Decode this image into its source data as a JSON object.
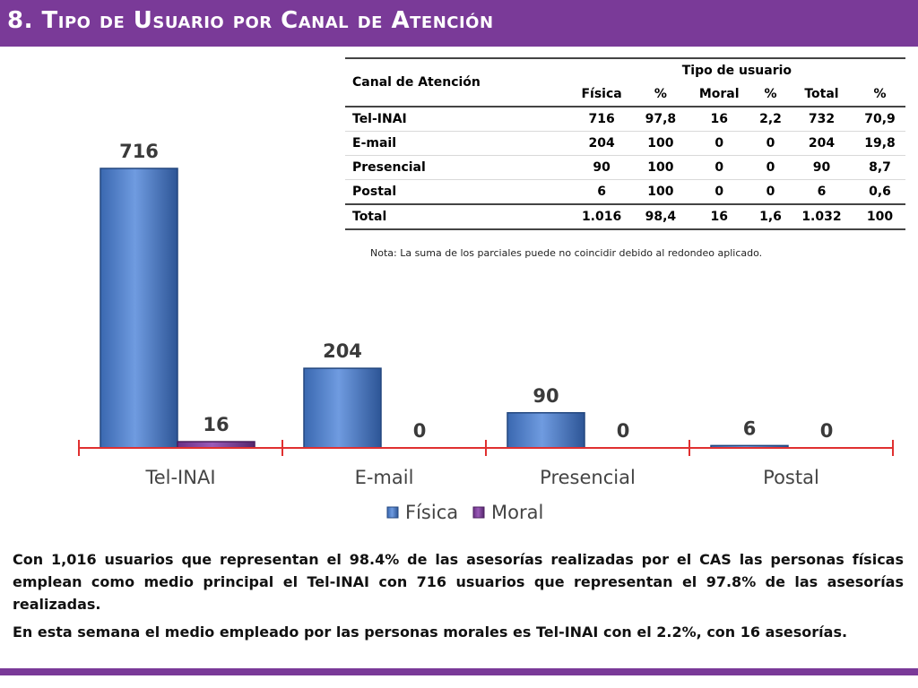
{
  "title": "8. Tipo de Usuario por Canal de Atención",
  "colors": {
    "header_bar": "#7a3a98",
    "fisica": "#4a7fcd",
    "moral": "#7f3f9d",
    "axis": "#e03030"
  },
  "chart_data": {
    "type": "bar",
    "categories": [
      "Tel-INAI",
      "E-mail",
      "Presencial",
      "Postal"
    ],
    "series": [
      {
        "name": "Física",
        "values": [
          716,
          204,
          90,
          6
        ]
      },
      {
        "name": "Moral",
        "values": [
          16,
          0,
          0,
          0
        ]
      }
    ],
    "title": "",
    "xlabel": "",
    "ylabel": "",
    "ylim": [
      0,
      716
    ],
    "legend": "bottom",
    "grid": false
  },
  "table": {
    "corner": "Canal de Atención",
    "group_header": "Tipo de usuario",
    "columns": [
      "Física",
      "%",
      "Moral",
      "%",
      "Total",
      "%"
    ],
    "rows": [
      {
        "label": "Tel-INAI",
        "cells": [
          "716",
          "97,8",
          "16",
          "2,2",
          "732",
          "70,9"
        ]
      },
      {
        "label": "E-mail",
        "cells": [
          "204",
          "100",
          "0",
          "0",
          "204",
          "19,8"
        ]
      },
      {
        "label": "Presencial",
        "cells": [
          "90",
          "100",
          "0",
          "0",
          "90",
          "8,7"
        ]
      },
      {
        "label": "Postal",
        "cells": [
          "6",
          "100",
          "0",
          "0",
          "6",
          "0,6"
        ]
      }
    ],
    "total": {
      "label": "Total",
      "cells": [
        "1.016",
        "98,4",
        "16",
        "1,6",
        "1.032",
        "100"
      ]
    }
  },
  "note": "Nota: La suma de los parciales puede no coincidir debido al redondeo aplicado.",
  "summary": {
    "p1": "Con 1,016 usuarios que representan el 98.4% de las asesorías realizadas por el CAS las personas físicas emplean como medio principal el Tel-INAI con 716 usuarios que representan el 97.8% de las asesorías realizadas.",
    "p2": "En esta semana el medio empleado por las personas morales es Tel-INAI con el 2.2%, con 16 asesorías."
  }
}
